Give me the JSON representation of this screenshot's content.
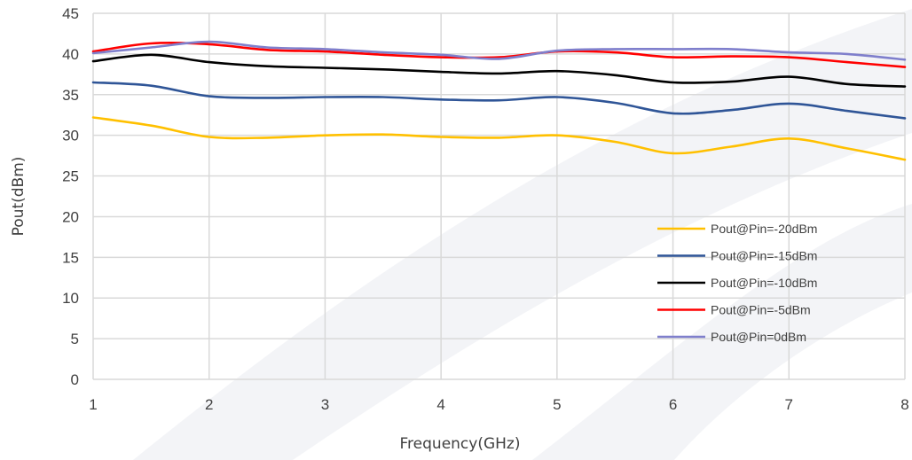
{
  "chart_data": {
    "type": "line",
    "title": "",
    "xlabel": "Frequency(GHz)",
    "ylabel": "Pout(dBm)",
    "xlim": [
      1,
      8
    ],
    "ylim": [
      0,
      45
    ],
    "xticks": [
      1,
      2,
      3,
      4,
      5,
      6,
      7,
      8
    ],
    "yticks": [
      0,
      5,
      10,
      15,
      20,
      25,
      30,
      35,
      40,
      45
    ],
    "grid": true,
    "legend_position": "bottom-right",
    "colors": {
      "grid": "#d9d9d9",
      "watermark": "#f3f4f7"
    },
    "series": [
      {
        "name": "Pout@Pin=-20dBm",
        "color": "#ffc000",
        "x": [
          1,
          1.5,
          2,
          2.5,
          3,
          3.5,
          4,
          4.5,
          5,
          5.5,
          6,
          6.5,
          7,
          7.5,
          8
        ],
        "y": [
          32.2,
          31.2,
          29.8,
          29.7,
          30.0,
          30.1,
          29.8,
          29.7,
          30.0,
          29.2,
          27.8,
          28.6,
          29.6,
          28.4,
          27.0
        ]
      },
      {
        "name": "Pout@Pin=-15dBm",
        "color": "#2f5597",
        "x": [
          1,
          1.5,
          2,
          2.5,
          3,
          3.5,
          4,
          4.5,
          5,
          5.5,
          6,
          6.5,
          7,
          7.5,
          8
        ],
        "y": [
          36.5,
          36.1,
          34.8,
          34.6,
          34.7,
          34.7,
          34.4,
          34.3,
          34.7,
          34.0,
          32.7,
          33.1,
          33.9,
          33.0,
          32.1
        ]
      },
      {
        "name": "Pout@Pin=-10dBm",
        "color": "#000000",
        "x": [
          1,
          1.5,
          2,
          2.5,
          3,
          3.5,
          4,
          4.5,
          5,
          5.5,
          6,
          6.5,
          7,
          7.5,
          8
        ],
        "y": [
          39.1,
          39.9,
          39.0,
          38.5,
          38.3,
          38.1,
          37.8,
          37.6,
          37.9,
          37.4,
          36.5,
          36.6,
          37.2,
          36.3,
          36.0
        ]
      },
      {
        "name": "Pout@Pin=-5dBm",
        "color": "#ff0000",
        "x": [
          1,
          1.5,
          2,
          2.5,
          3,
          3.5,
          4,
          4.5,
          5,
          5.5,
          6,
          6.5,
          7,
          7.5,
          8
        ],
        "y": [
          40.3,
          41.3,
          41.2,
          40.5,
          40.3,
          39.9,
          39.6,
          39.6,
          40.3,
          40.2,
          39.6,
          39.7,
          39.6,
          39.0,
          38.4
        ]
      },
      {
        "name": "Pout@Pin=0dBm",
        "color": "#7f7fcc",
        "x": [
          1,
          1.5,
          2,
          2.5,
          3,
          3.5,
          4,
          4.5,
          5,
          5.5,
          6,
          6.5,
          7,
          7.5,
          8
        ],
        "y": [
          40.1,
          40.8,
          41.5,
          40.8,
          40.6,
          40.2,
          39.9,
          39.4,
          40.4,
          40.6,
          40.6,
          40.6,
          40.2,
          40.0,
          39.3
        ]
      }
    ]
  }
}
